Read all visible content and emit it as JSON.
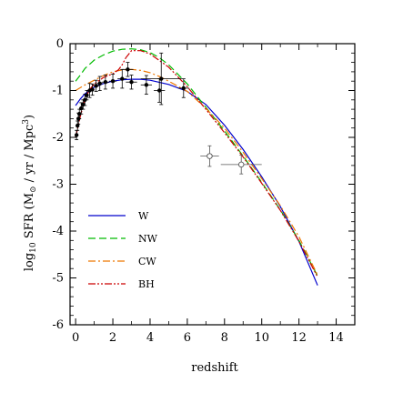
{
  "chart_data": {
    "type": "line",
    "title": "",
    "xlabel": "redshift",
    "ylabel": "log10 SFR (M⊙ / yr / Mpc3)",
    "xlim": [
      -0.3,
      15
    ],
    "ylim": [
      -6,
      0
    ],
    "x_ticks": [
      0,
      2,
      4,
      6,
      8,
      10,
      12,
      14
    ],
    "y_ticks": [
      0,
      -1,
      -2,
      -3,
      -4,
      -5,
      -6
    ],
    "grid": false,
    "legend_position": "lower-left",
    "series": [
      {
        "name": "W",
        "color": "#0000cc",
        "dash": "solid",
        "x": [
          0,
          0.25,
          0.5,
          1,
          1.5,
          2,
          2.5,
          3,
          3.5,
          4,
          5,
          6,
          7,
          8,
          9,
          10,
          11,
          12,
          13
        ],
        "y": [
          -1.32,
          -1.18,
          -1.07,
          -0.93,
          -0.85,
          -0.8,
          -0.77,
          -0.76,
          -0.76,
          -0.78,
          -0.87,
          -1.02,
          -1.3,
          -1.74,
          -2.26,
          -2.84,
          -3.48,
          -4.22,
          -5.16
        ]
      },
      {
        "name": "NW",
        "color": "#00bb00",
        "dash": "dashed",
        "x": [
          0,
          0.25,
          0.5,
          1,
          1.5,
          2,
          2.5,
          3,
          3.5,
          4,
          4.5,
          5,
          6,
          7,
          8,
          9,
          10,
          11,
          12,
          13
        ],
        "y": [
          -0.8,
          -0.67,
          -0.53,
          -0.35,
          -0.24,
          -0.16,
          -0.12,
          -0.11,
          -0.13,
          -0.19,
          -0.3,
          -0.45,
          -0.86,
          -1.36,
          -1.86,
          -2.4,
          -2.96,
          -3.55,
          -4.2,
          -4.96
        ]
      },
      {
        "name": "CW",
        "color": "#ee7700",
        "dash": "dashdot",
        "x": [
          0,
          0.5,
          1,
          1.5,
          2,
          2.5,
          3,
          3.5,
          4,
          4.5,
          5,
          6,
          7,
          8,
          9,
          10,
          11,
          12,
          13
        ],
        "y": [
          -1.0,
          -0.88,
          -0.78,
          -0.68,
          -0.6,
          -0.56,
          -0.55,
          -0.57,
          -0.62,
          -0.7,
          -0.8,
          -1.02,
          -1.38,
          -1.8,
          -2.32,
          -2.88,
          -3.46,
          -4.12,
          -4.94
        ]
      },
      {
        "name": "BH",
        "color": "#cc0000",
        "dash": "dashdotdot",
        "x": [
          0,
          0.25,
          0.5,
          0.75,
          1,
          1.5,
          2,
          2.3,
          2.5,
          2.7,
          3,
          3.5,
          4,
          5,
          6,
          7,
          8,
          9,
          10,
          11,
          12,
          13
        ],
        "y": [
          -2.0,
          -1.55,
          -1.18,
          -0.98,
          -0.86,
          -0.72,
          -0.64,
          -0.56,
          -0.45,
          -0.3,
          -0.15,
          -0.15,
          -0.22,
          -0.5,
          -0.92,
          -1.4,
          -1.9,
          -2.42,
          -2.98,
          -3.56,
          -4.22,
          -4.98
        ]
      }
    ],
    "observations": [
      {
        "x": 0.05,
        "y": -1.95,
        "yerr": 0.1,
        "xerr": 0.05,
        "marker": "filled"
      },
      {
        "x": 0.1,
        "y": -1.75,
        "yerr": 0.1,
        "xerr": 0.05,
        "marker": "filled"
      },
      {
        "x": 0.15,
        "y": -1.6,
        "yerr": 0.12,
        "xerr": 0.05,
        "marker": "filled"
      },
      {
        "x": 0.2,
        "y": -1.5,
        "yerr": 0.1,
        "xerr": 0.05,
        "marker": "filled"
      },
      {
        "x": 0.3,
        "y": -1.38,
        "yerr": 0.12,
        "xerr": 0.1,
        "marker": "filled"
      },
      {
        "x": 0.4,
        "y": -1.3,
        "yerr": 0.1,
        "xerr": 0.1,
        "marker": "filled"
      },
      {
        "x": 0.5,
        "y": -1.2,
        "yerr": 0.12,
        "xerr": 0.1,
        "marker": "filled"
      },
      {
        "x": 0.6,
        "y": -1.1,
        "yerr": 0.1,
        "xerr": 0.1,
        "marker": "filled"
      },
      {
        "x": 0.75,
        "y": -1.0,
        "yerr": 0.15,
        "xerr": 0.15,
        "marker": "filled"
      },
      {
        "x": 0.9,
        "y": -0.98,
        "yerr": 0.12,
        "xerr": 0.1,
        "marker": "filled"
      },
      {
        "x": 1.1,
        "y": -0.9,
        "yerr": 0.12,
        "xerr": 0.15,
        "marker": "filled"
      },
      {
        "x": 1.3,
        "y": -0.85,
        "yerr": 0.15,
        "xerr": 0.15,
        "marker": "filled"
      },
      {
        "x": 1.6,
        "y": -0.82,
        "yerr": 0.15,
        "xerr": 0.2,
        "marker": "filled"
      },
      {
        "x": 2.0,
        "y": -0.8,
        "yerr": 0.15,
        "xerr": 0.2,
        "marker": "filled"
      },
      {
        "x": 2.5,
        "y": -0.75,
        "yerr": 0.2,
        "xerr": 0.25,
        "marker": "filled"
      },
      {
        "x": 3.0,
        "y": -0.82,
        "yerr": 0.15,
        "xerr": 0.3,
        "marker": "filled"
      },
      {
        "x": 3.8,
        "y": -0.88,
        "yerr": 0.2,
        "xerr": 0.3,
        "marker": "filled"
      },
      {
        "x": 4.5,
        "y": -1.0,
        "yerr": 0.25,
        "xerr": 0.3,
        "marker": "filled"
      },
      {
        "x": 5.8,
        "y": -0.95,
        "yerr": 0.2,
        "xerr": 0.3,
        "marker": "filled"
      },
      {
        "x": 2.8,
        "y": -0.55,
        "yerr": 0.15,
        "xerr": 0.3,
        "marker": "filled"
      },
      {
        "x": 4.6,
        "y": -0.75,
        "yerr": 0.55,
        "xerr": 1.1,
        "marker": "filled"
      },
      {
        "x": 7.2,
        "y": -2.4,
        "yerr": 0.22,
        "xerr": 0.5,
        "marker": "open"
      },
      {
        "x": 8.9,
        "y": -2.58,
        "yerr": 0.2,
        "xerr": 1.1,
        "marker": "open"
      }
    ]
  }
}
